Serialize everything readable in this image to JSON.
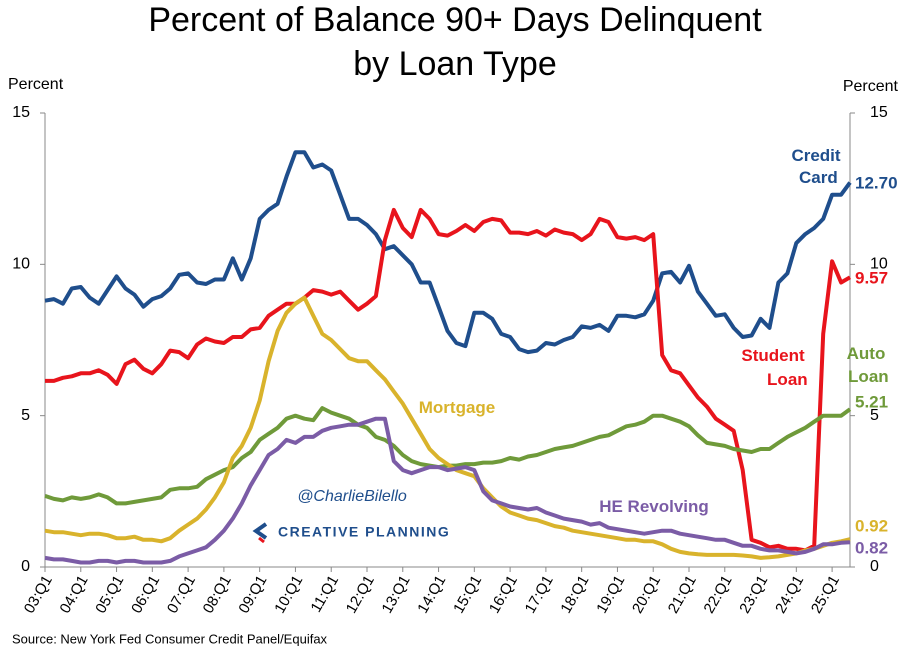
{
  "chart_data": {
    "type": "line",
    "title": [
      "Percent of Balance 90+ Days Delinquent",
      "by Loan Type"
    ],
    "y_label": "Percent",
    "y2_label": "Percent",
    "source": "Source: New York Fed Consumer Credit Panel/Equifax",
    "watermark": "@CharlieBilello",
    "logo_text": "CREATIVE PLANNING",
    "categories": [
      "03:Q1",
      null,
      null,
      null,
      "04:Q1",
      null,
      null,
      null,
      "05:Q1",
      null,
      null,
      null,
      "06:Q1",
      null,
      null,
      null,
      "07:Q1",
      null,
      null,
      null,
      "08:Q1",
      null,
      null,
      null,
      "09:Q1",
      null,
      null,
      null,
      "10:Q1",
      null,
      null,
      null,
      "11:Q1",
      null,
      null,
      null,
      "12:Q1",
      null,
      null,
      null,
      "13:Q1",
      null,
      null,
      null,
      "14:Q1",
      null,
      null,
      null,
      "15:Q1",
      null,
      null,
      null,
      "16:Q1",
      null,
      null,
      null,
      "17:Q1",
      null,
      null,
      null,
      "18:Q1",
      null,
      null,
      null,
      "19:Q1",
      null,
      null,
      null,
      "20:Q1",
      null,
      null,
      null,
      "21:Q1",
      null,
      null,
      null,
      "22:Q1",
      null,
      null,
      null,
      "23:Q1",
      null,
      null,
      null,
      "24:Q1",
      null,
      null,
      null,
      "25:Q1",
      null,
      null
    ],
    "ylim": [
      0,
      15
    ],
    "yticks": [
      0,
      5,
      10,
      15
    ],
    "y2lim": [
      0,
      15
    ],
    "y2ticks": [
      0,
      5,
      10,
      15
    ],
    "series": [
      {
        "name": "Credit Card",
        "color": "#1f4e8c",
        "last_label": "12.70",
        "values": [
          8.8,
          8.85,
          8.7,
          9.2,
          9.25,
          8.9,
          8.7,
          9.15,
          9.6,
          9.2,
          9.0,
          8.6,
          8.85,
          8.95,
          9.2,
          9.65,
          9.7,
          9.4,
          9.35,
          9.5,
          9.5,
          10.2,
          9.5,
          10.2,
          11.5,
          11.8,
          12.0,
          12.9,
          13.7,
          13.7,
          13.2,
          13.3,
          13.1,
          12.3,
          11.5,
          11.5,
          11.3,
          11.0,
          10.5,
          10.6,
          10.3,
          10.0,
          9.4,
          9.4,
          8.6,
          7.8,
          7.4,
          7.3,
          8.4,
          8.4,
          8.2,
          7.7,
          7.6,
          7.2,
          7.1,
          7.15,
          7.4,
          7.35,
          7.5,
          7.6,
          7.95,
          7.9,
          8.0,
          7.8,
          8.3,
          8.3,
          8.25,
          8.35,
          8.8,
          9.7,
          9.75,
          9.4,
          9.95,
          9.1,
          8.7,
          8.3,
          8.35,
          7.9,
          7.6,
          7.65,
          8.2,
          7.9,
          9.4,
          9.7,
          10.7,
          11.0,
          11.2,
          11.5,
          12.3,
          12.3,
          12.7
        ]
      },
      {
        "name": "Student Loan",
        "color": "#e8141c",
        "last_label": "9.57",
        "values": [
          6.15,
          6.15,
          6.25,
          6.3,
          6.4,
          6.4,
          6.5,
          6.35,
          6.05,
          6.7,
          6.85,
          6.55,
          6.4,
          6.7,
          7.15,
          7.1,
          6.9,
          7.35,
          7.55,
          7.45,
          7.4,
          7.6,
          7.6,
          7.85,
          7.9,
          8.3,
          8.5,
          8.7,
          8.7,
          8.9,
          9.15,
          9.1,
          9.0,
          9.1,
          8.8,
          8.5,
          8.7,
          8.95,
          10.8,
          11.8,
          11.2,
          10.9,
          11.8,
          11.5,
          11.0,
          10.95,
          11.1,
          11.3,
          11.1,
          11.4,
          11.5,
          11.45,
          11.05,
          11.05,
          11.0,
          11.1,
          10.95,
          11.15,
          11.05,
          11.0,
          10.8,
          11.0,
          11.5,
          11.4,
          10.9,
          10.85,
          10.9,
          10.8,
          11.0,
          7.0,
          6.5,
          6.4,
          6.0,
          5.6,
          5.3,
          4.9,
          4.7,
          4.5,
          3.2,
          0.9,
          0.8,
          0.65,
          0.7,
          0.6,
          0.6,
          0.55,
          0.7,
          7.7,
          10.1,
          9.4,
          9.57
        ]
      },
      {
        "name": "Auto Loan",
        "color": "#6f9a3a",
        "last_label": "5.21",
        "values": [
          2.35,
          2.25,
          2.2,
          2.3,
          2.25,
          2.3,
          2.4,
          2.3,
          2.1,
          2.1,
          2.15,
          2.2,
          2.25,
          2.3,
          2.55,
          2.6,
          2.6,
          2.65,
          2.9,
          3.05,
          3.2,
          3.3,
          3.6,
          3.8,
          4.2,
          4.4,
          4.6,
          4.9,
          5.0,
          4.9,
          4.85,
          5.25,
          5.1,
          5.0,
          4.9,
          4.7,
          4.6,
          4.3,
          4.2,
          4.0,
          3.7,
          3.5,
          3.4,
          3.35,
          3.3,
          3.35,
          3.35,
          3.4,
          3.4,
          3.45,
          3.45,
          3.5,
          3.6,
          3.55,
          3.65,
          3.7,
          3.8,
          3.9,
          3.95,
          4.0,
          4.1,
          4.2,
          4.3,
          4.35,
          4.5,
          4.65,
          4.7,
          4.8,
          5.0,
          5.0,
          4.9,
          4.8,
          4.65,
          4.35,
          4.1,
          4.05,
          4.0,
          3.9,
          3.85,
          3.8,
          3.9,
          3.9,
          4.1,
          4.3,
          4.45,
          4.6,
          4.8,
          5.0,
          5.0,
          5.0,
          5.21
        ]
      },
      {
        "name": "Mortgage",
        "color": "#d9b32c",
        "last_label": "0.92",
        "values": [
          1.2,
          1.15,
          1.15,
          1.1,
          1.05,
          1.1,
          1.1,
          1.05,
          0.95,
          0.95,
          1.0,
          0.9,
          0.9,
          0.85,
          0.95,
          1.2,
          1.4,
          1.6,
          1.9,
          2.3,
          2.8,
          3.6,
          4.0,
          4.6,
          5.5,
          6.8,
          7.8,
          8.4,
          8.7,
          8.9,
          8.3,
          7.7,
          7.5,
          7.2,
          6.9,
          6.8,
          6.8,
          6.5,
          6.2,
          5.8,
          5.4,
          4.9,
          4.4,
          3.9,
          3.6,
          3.4,
          3.2,
          3.1,
          3.0,
          2.6,
          2.3,
          2.0,
          1.8,
          1.7,
          1.6,
          1.55,
          1.45,
          1.35,
          1.3,
          1.2,
          1.15,
          1.1,
          1.05,
          1.0,
          0.95,
          0.9,
          0.9,
          0.85,
          0.85,
          0.75,
          0.6,
          0.5,
          0.45,
          0.42,
          0.4,
          0.4,
          0.4,
          0.4,
          0.38,
          0.35,
          0.3,
          0.32,
          0.35,
          0.4,
          0.45,
          0.55,
          0.6,
          0.7,
          0.8,
          0.85,
          0.92
        ]
      },
      {
        "name": "HE Revolving",
        "color": "#7b5ca6",
        "last_label": "0.82",
        "values": [
          0.3,
          0.25,
          0.25,
          0.2,
          0.15,
          0.15,
          0.2,
          0.2,
          0.15,
          0.2,
          0.2,
          0.15,
          0.15,
          0.15,
          0.2,
          0.35,
          0.45,
          0.55,
          0.65,
          0.9,
          1.2,
          1.6,
          2.1,
          2.7,
          3.2,
          3.7,
          3.9,
          4.2,
          4.1,
          4.3,
          4.3,
          4.5,
          4.6,
          4.65,
          4.7,
          4.7,
          4.8,
          4.9,
          4.9,
          3.5,
          3.2,
          3.1,
          3.2,
          3.3,
          3.3,
          3.2,
          3.25,
          3.3,
          3.2,
          2.5,
          2.2,
          2.1,
          2.0,
          1.95,
          1.9,
          1.95,
          1.8,
          1.7,
          1.6,
          1.55,
          1.5,
          1.4,
          1.45,
          1.3,
          1.25,
          1.2,
          1.15,
          1.1,
          1.15,
          1.2,
          1.2,
          1.1,
          1.05,
          1.0,
          0.95,
          0.9,
          0.9,
          0.8,
          0.7,
          0.7,
          0.6,
          0.55,
          0.55,
          0.5,
          0.45,
          0.5,
          0.6,
          0.75,
          0.75,
          0.8,
          0.82
        ]
      }
    ]
  }
}
